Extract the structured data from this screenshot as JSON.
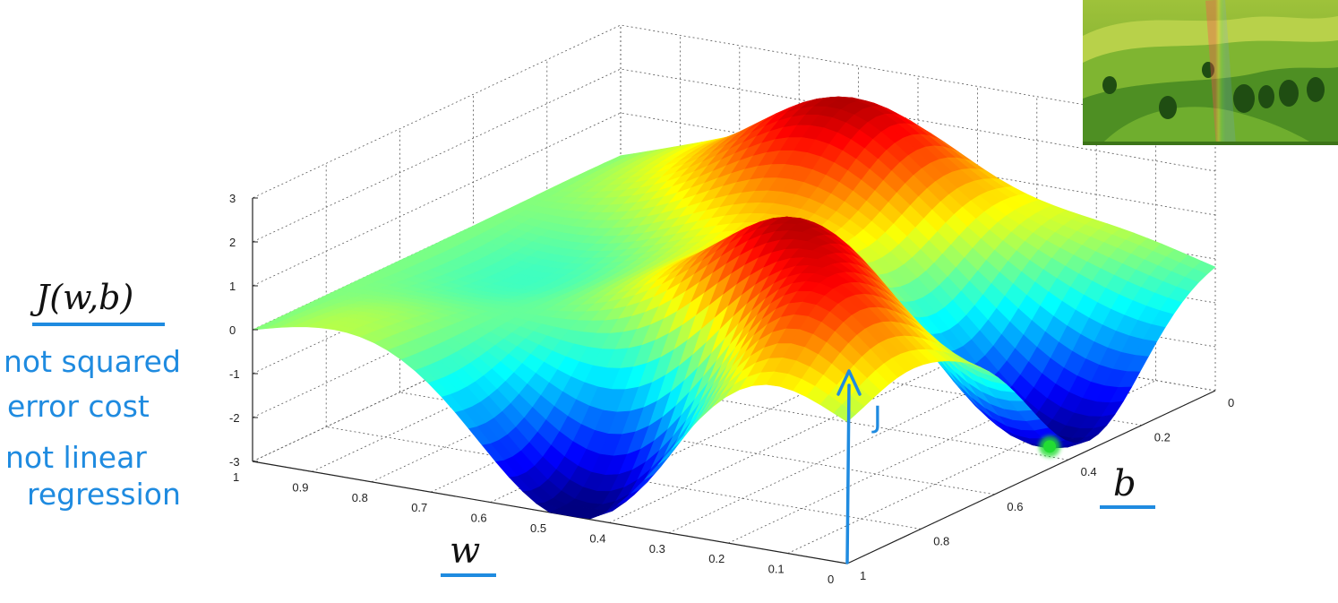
{
  "chart_data": {
    "type": "surface",
    "title": "",
    "xlabel": "w",
    "ylabel": "b",
    "zlabel": "J",
    "xlim": [
      0,
      1
    ],
    "ylim": [
      0,
      1
    ],
    "zlim": [
      -3,
      3
    ],
    "x_ticks": [
      "0",
      "0.1",
      "0.2",
      "0.3",
      "0.4",
      "0.5",
      "0.6",
      "0.7",
      "0.8",
      "0.9",
      "1"
    ],
    "y_ticks": [
      "0",
      "0.2",
      "0.4",
      "0.6",
      "0.8",
      "1"
    ],
    "z_ticks": [
      "-3",
      "-2",
      "-1",
      "0",
      "1",
      "2",
      "3"
    ],
    "colormap": "jet",
    "grid": true,
    "surface_features": [
      {
        "kind": "peak",
        "w": 0.55,
        "b": 0.1,
        "J": 3.0
      },
      {
        "kind": "peak",
        "w": 0.3,
        "b": 0.65,
        "J": 3.0
      },
      {
        "kind": "valley",
        "w": 0.45,
        "b": 0.95,
        "J": -3.0
      },
      {
        "kind": "valley",
        "w": 0.05,
        "b": 0.35,
        "J": -3.0
      },
      {
        "kind": "saddle",
        "w": 0.15,
        "b": 0.85,
        "J": 1.5
      }
    ],
    "highlight_point": {
      "w": 0.0,
      "b": 0.45,
      "J": -2.5,
      "color": "#22dd33"
    }
  },
  "annotations": {
    "cost_label": "J(w,b)",
    "note_line1": "not squared",
    "note_line2": "error cost",
    "note_line3": "not linear",
    "note_line4": "regression",
    "w_label": "w",
    "b_label": "b",
    "j_label": "J"
  },
  "colors": {
    "handwriting": "#1f8be0",
    "point": "#22dd33"
  }
}
